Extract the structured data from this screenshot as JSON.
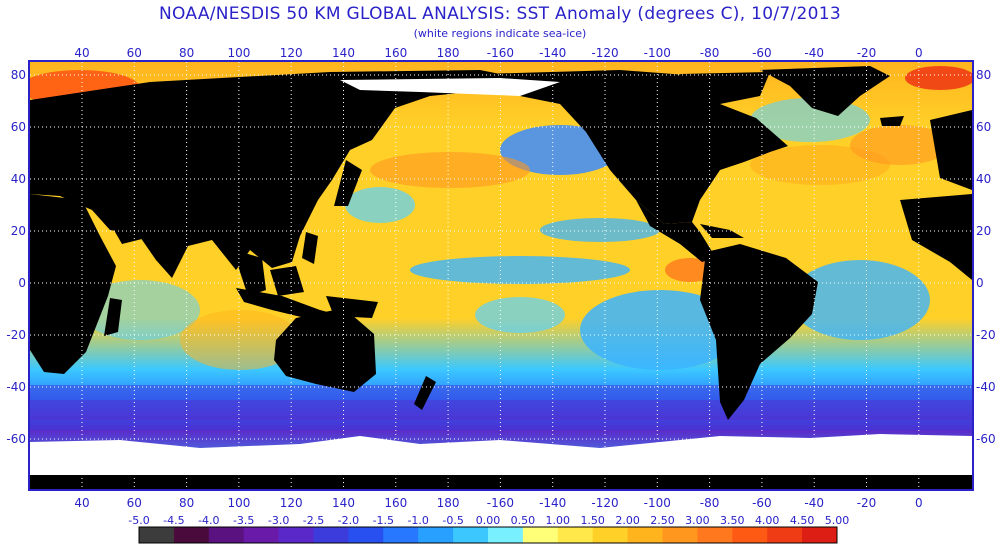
{
  "title": "NOAA/NESDIS 50 KM GLOBAL ANALYSIS: SST Anomaly (degrees C), 10/7/2013",
  "subtitle": "(white regions indicate sea-ice)",
  "map": {
    "lon_ticks": [
      "40",
      "60",
      "80",
      "100",
      "120",
      "140",
      "160",
      "180",
      "-160",
      "-140",
      "-120",
      "-100",
      "-80",
      "-60",
      "-40",
      "-20",
      "0"
    ],
    "lat_ticks": [
      "80",
      "60",
      "40",
      "20",
      "0",
      "-20",
      "-40",
      "-60"
    ],
    "land_color": "#000000",
    "ice_color": "#ffffff",
    "grid_color": "#ffffff",
    "frame_color": "#2a22c8"
  },
  "legend": {
    "labels": [
      "-5.0",
      "-4.5",
      "-4.0",
      "-3.5",
      "-3.0",
      "-2.5",
      "-2.0",
      "-1.5",
      "-1.0",
      "-0.5",
      "0.00",
      "0.50",
      "1.00",
      "1.50",
      "2.00",
      "2.50",
      "3.00",
      "3.50",
      "4.00",
      "4.50",
      "5.00"
    ],
    "colors": [
      "#3c3c3c",
      "#4a0a3c",
      "#5a1280",
      "#6a1aa8",
      "#5a28c8",
      "#3c3cdc",
      "#2850f0",
      "#2878ff",
      "#28a0ff",
      "#3cc8ff",
      "#78f0ff",
      "#ffff78",
      "#ffe84a",
      "#ffd028",
      "#ffb41e",
      "#ff961e",
      "#ff781e",
      "#ff5a14",
      "#f03c14",
      "#dc1e14"
    ]
  }
}
